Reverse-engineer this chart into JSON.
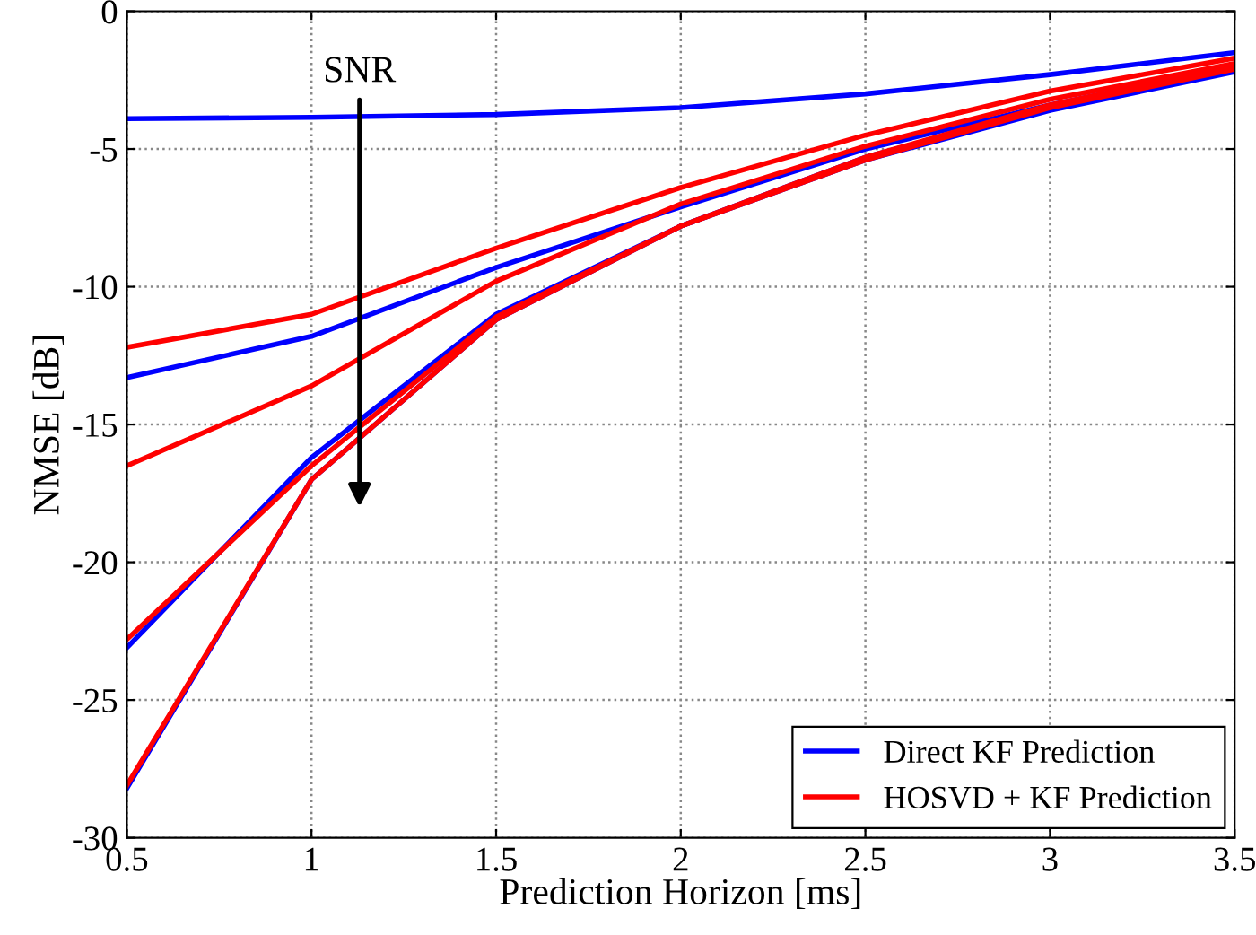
{
  "chart_data": {
    "type": "line",
    "xlabel": "Prediction Horizon [ms]",
    "ylabel": "NMSE [dB]",
    "x": [
      0.5,
      1,
      1.5,
      2,
      2.5,
      3,
      3.5
    ],
    "series": [
      {
        "name": "Direct KF Prediction",
        "color": "#0000ff",
        "values": [
          -3.9,
          -3.85,
          -3.75,
          -3.5,
          -3.0,
          -2.3,
          -1.5
        ]
      },
      {
        "color": "#0000ff",
        "values": [
          -13.3,
          -11.8,
          -9.3,
          -7.1,
          -5.0,
          -3.4,
          -2.0
        ]
      },
      {
        "color": "#0000ff",
        "values": [
          -23.1,
          -16.2,
          -11.0,
          -7.8,
          -5.3,
          -3.5,
          -2.1
        ]
      },
      {
        "color": "#0000ff",
        "values": [
          -28.2,
          -17.0,
          -11.2,
          -7.8,
          -5.4,
          -3.6,
          -2.2
        ]
      },
      {
        "name": "HOSVD + KF Prediction",
        "color": "#ff0000",
        "values": [
          -12.2,
          -11.0,
          -8.6,
          -6.4,
          -4.5,
          -2.9,
          -1.7
        ]
      },
      {
        "color": "#ff0000",
        "values": [
          -16.5,
          -13.6,
          -9.8,
          -7.0,
          -4.9,
          -3.2,
          -1.9
        ]
      },
      {
        "color": "#ff0000",
        "values": [
          -22.8,
          -16.5,
          -11.1,
          -7.8,
          -5.3,
          -3.4,
          -2.0
        ]
      },
      {
        "color": "#ff0000",
        "values": [
          -28.1,
          -17.0,
          -11.2,
          -7.8,
          -5.4,
          -3.5,
          -2.1
        ]
      }
    ],
    "annotations": [
      "SNR"
    ],
    "xlim": [
      0.5,
      3.5
    ],
    "xticks": [
      0.5,
      1,
      1.5,
      2,
      2.5,
      3,
      3.5
    ],
    "ylim": [
      -30,
      0
    ],
    "yticks": [
      -30,
      -25,
      -20,
      -15,
      -10,
      -5,
      0
    ],
    "grid": true,
    "legend": "bottom right",
    "marker": "none",
    "line_style": "solid"
  }
}
